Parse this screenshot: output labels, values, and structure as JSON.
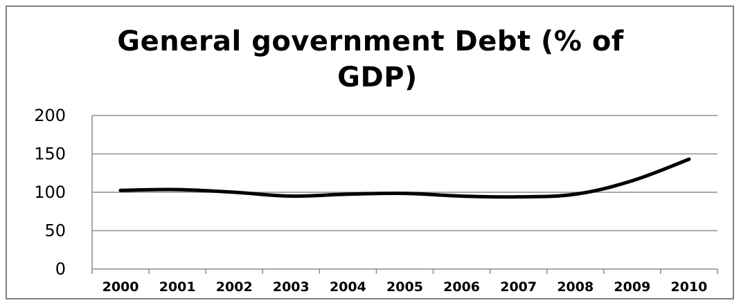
{
  "chart_data": {
    "type": "line",
    "title_lines": [
      "General government Debt (% of",
      "GDP)"
    ],
    "title": "General government Debt (% of GDP)",
    "xlabel": "",
    "ylabel": "",
    "categories": [
      "2000",
      "2001",
      "2002",
      "2003",
      "2004",
      "2005",
      "2006",
      "2007",
      "2008",
      "2009",
      "2010"
    ],
    "series": [
      {
        "values": [
          102.5,
          103.5,
          100,
          95,
          97.5,
          98.5,
          95,
          94,
          97.5,
          115,
          143
        ]
      }
    ],
    "ylim": [
      0,
      200
    ],
    "yticks": [
      "0",
      "50",
      "100",
      "150",
      "200"
    ],
    "grid": true,
    "legend": "none",
    "colors": {
      "line": "#000000",
      "grid": "#8c8c8c",
      "frame": "#7f7f7f"
    }
  }
}
